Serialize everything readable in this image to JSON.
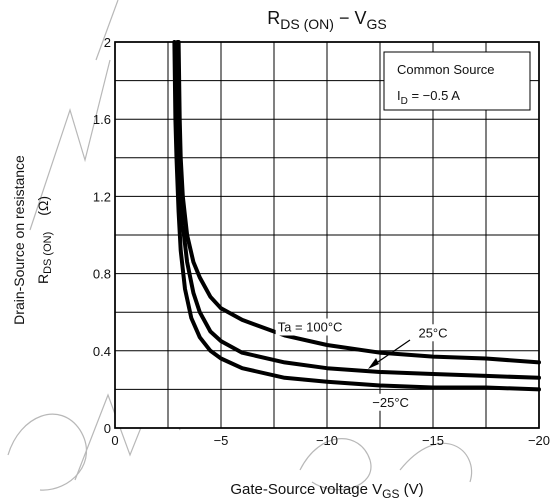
{
  "chart_data": {
    "type": "line",
    "title": {
      "main": "R",
      "sub": "DS (ON)",
      "tail": " − V",
      "sub2": "GS"
    },
    "xlabel": {
      "main": "Gate-Source voltage   V",
      "sub": "GS",
      "unit": "   (V)"
    },
    "ylabel": {
      "line1": "Drain-Source on resistance",
      "line2_main": "R",
      "line2_sub": "DS (ON)",
      "line2_unit": "(Ω)"
    },
    "xlim": [
      0,
      -20
    ],
    "ylim": [
      0,
      2
    ],
    "x_ticks": [
      0,
      -5,
      -10,
      -15,
      -20
    ],
    "x_tick_labels": [
      "0",
      "−5",
      "−10",
      "−15",
      "−20"
    ],
    "y_ticks": [
      0,
      0.4,
      0.8,
      1.2,
      1.6,
      2
    ],
    "y_tick_labels": [
      "0",
      "0.4",
      "0.8",
      "1.2",
      "1.6",
      "2"
    ],
    "x_minor_step": 2.5,
    "y_minor_step": 0.2,
    "grid": true,
    "legend_box": {
      "line1": "Common Source",
      "line2_main": "I",
      "line2_sub": "D",
      "line2_tail": " = −0.5 A"
    },
    "series": [
      {
        "name": "Ta = 100°C",
        "x": [
          -3.0,
          -3.05,
          -3.1,
          -3.2,
          -3.4,
          -3.7,
          -4.0,
          -4.5,
          -5.0,
          -6.0,
          -8.0,
          -10.0,
          -12.5,
          -15.0,
          -17.5,
          -20.0
        ],
        "y": [
          2.0,
          1.6,
          1.4,
          1.2,
          1.0,
          0.86,
          0.78,
          0.68,
          0.62,
          0.56,
          0.48,
          0.43,
          0.39,
          0.37,
          0.36,
          0.34
        ]
      },
      {
        "name": "25°C",
        "x": [
          -2.95,
          -3.0,
          -3.05,
          -3.1,
          -3.2,
          -3.4,
          -3.7,
          -4.0,
          -4.5,
          -5.0,
          -6.0,
          -8.0,
          -10.0,
          -12.5,
          -15.0,
          -17.5,
          -20.0
        ],
        "y": [
          2.0,
          1.6,
          1.4,
          1.2,
          1.05,
          0.86,
          0.7,
          0.6,
          0.5,
          0.45,
          0.39,
          0.34,
          0.31,
          0.29,
          0.28,
          0.27,
          0.26
        ]
      },
      {
        "name": "−25°C",
        "x": [
          -2.8,
          -2.85,
          -2.9,
          -3.0,
          -3.1,
          -3.3,
          -3.6,
          -4.0,
          -4.5,
          -5.0,
          -6.0,
          -8.0,
          -10.0,
          -12.5,
          -15.0,
          -17.5,
          -20.0
        ],
        "y": [
          2.0,
          1.6,
          1.4,
          1.12,
          0.92,
          0.72,
          0.57,
          0.47,
          0.4,
          0.36,
          0.31,
          0.26,
          0.24,
          0.22,
          0.21,
          0.21,
          0.2
        ]
      }
    ],
    "annotations": [
      {
        "text": "Ta = 100°C",
        "x": -9.2,
        "y": 0.5
      },
      {
        "text": "25°C",
        "x": -15.0,
        "y": 0.47
      },
      {
        "text": "−25°C",
        "x": -13.0,
        "y": 0.11
      }
    ]
  }
}
